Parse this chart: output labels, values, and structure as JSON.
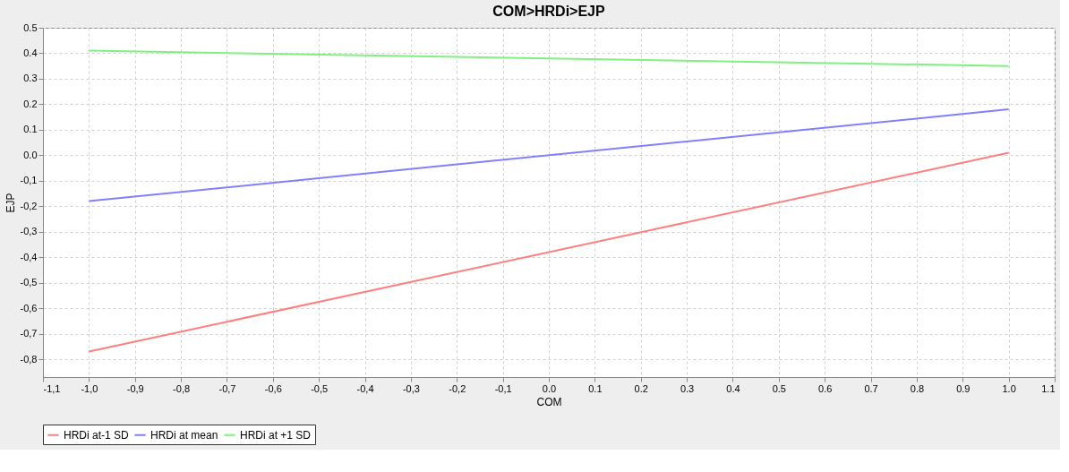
{
  "chart_data": {
    "type": "line",
    "title": "COM>HRDi>EJP",
    "xlabel": "COM",
    "ylabel": "EJP",
    "x": [
      -1.0,
      1.0
    ],
    "series": [
      {
        "name": "HRDi at-1 SD",
        "color": "#ff7f7f",
        "values": [
          -0.77,
          0.01
        ]
      },
      {
        "name": "HRDi at mean",
        "color": "#8080ff",
        "values": [
          -0.18,
          0.18
        ]
      },
      {
        "name": "HRDi at +1 SD",
        "color": "#80f080",
        "values": [
          0.41,
          0.35
        ]
      }
    ],
    "xlim": [
      -1.1,
      1.1
    ],
    "xticks": [
      {
        "value": -1.1,
        "label": "-1,1"
      },
      {
        "value": -1.0,
        "label": "-1,0"
      },
      {
        "value": -0.9,
        "label": "-0,9"
      },
      {
        "value": -0.8,
        "label": "-0,8"
      },
      {
        "value": -0.7,
        "label": "-0,7"
      },
      {
        "value": -0.6,
        "label": "-0,6"
      },
      {
        "value": -0.5,
        "label": "-0,5"
      },
      {
        "value": -0.4,
        "label": "-0,4"
      },
      {
        "value": -0.3,
        "label": "-0,3"
      },
      {
        "value": -0.2,
        "label": "-0,2"
      },
      {
        "value": -0.1,
        "label": "-0,1"
      },
      {
        "value": 0,
        "label": "0.0"
      },
      {
        "value": 0.1,
        "label": "0.1"
      },
      {
        "value": 0.2,
        "label": "0.2"
      },
      {
        "value": 0.3,
        "label": "0.3"
      },
      {
        "value": 0.4,
        "label": "0.4"
      },
      {
        "value": 0.5,
        "label": "0.5"
      },
      {
        "value": 0.6,
        "label": "0.6"
      },
      {
        "value": 0.7,
        "label": "0.7"
      },
      {
        "value": 0.8,
        "label": "0.8"
      },
      {
        "value": 0.9,
        "label": "0.9"
      },
      {
        "value": 1.0,
        "label": "1.0"
      },
      {
        "value": 1.1,
        "label": "1.1"
      }
    ],
    "ylim": [
      -0.87,
      0.5
    ],
    "yticks": [
      {
        "value": -0.8,
        "label": "-0,8"
      },
      {
        "value": -0.7,
        "label": "-0,7"
      },
      {
        "value": -0.6,
        "label": "-0,6"
      },
      {
        "value": -0.5,
        "label": "-0,5"
      },
      {
        "value": -0.4,
        "label": "-0,4"
      },
      {
        "value": -0.3,
        "label": "-0,3"
      },
      {
        "value": -0.2,
        "label": "-0,2"
      },
      {
        "value": -0.1,
        "label": "-0,1"
      },
      {
        "value": 0,
        "label": "0.0"
      },
      {
        "value": 0.1,
        "label": "0.1"
      },
      {
        "value": 0.2,
        "label": "0.2"
      },
      {
        "value": 0.3,
        "label": "0.3"
      },
      {
        "value": 0.4,
        "label": "0.4"
      },
      {
        "value": 0.5,
        "label": "0.5"
      }
    ],
    "grid": true,
    "legend": "bottom",
    "marker": "none",
    "line_style": "solid"
  }
}
